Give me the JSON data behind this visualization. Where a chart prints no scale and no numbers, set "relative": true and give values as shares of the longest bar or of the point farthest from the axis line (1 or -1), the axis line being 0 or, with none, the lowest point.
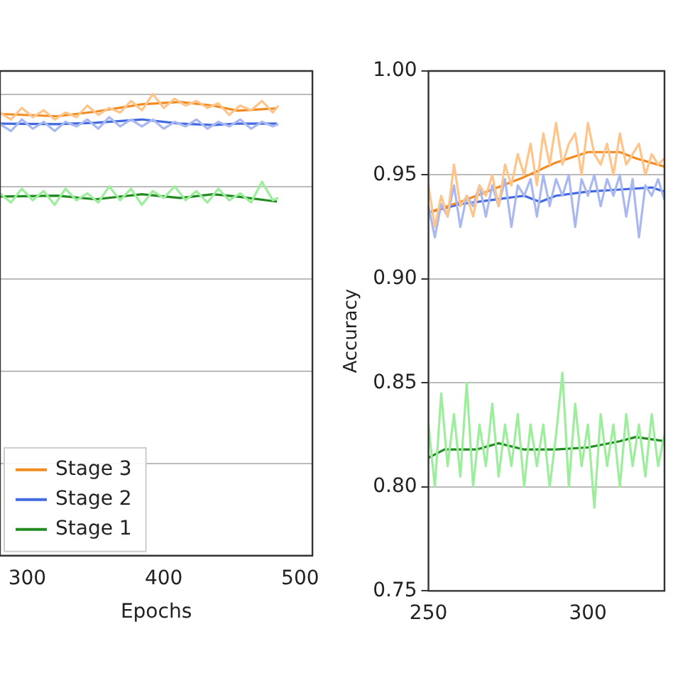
{
  "chart_data": [
    {
      "type": "line",
      "relative": true,
      "xlabel": "Epochs",
      "xlim": [
        280,
        509
      ],
      "xticks": [
        300,
        400,
        500
      ],
      "grid": "y",
      "legend": "lower left",
      "marker": "none",
      "line_style": "solid",
      "series": [
        {
          "color": "#ffc48a",
          "x": [
            280,
            288,
            296,
            304,
            312,
            320,
            328,
            336,
            344,
            352,
            360,
            368,
            376,
            384,
            392,
            400,
            408,
            416,
            424,
            432,
            440,
            448,
            456,
            464,
            472,
            480,
            484
          ],
          "values": [
            0.96,
            0.945,
            0.97,
            0.95,
            0.965,
            0.945,
            0.96,
            0.95,
            0.975,
            0.955,
            0.97,
            0.96,
            0.985,
            0.965,
            1.0,
            0.97,
            0.99,
            0.975,
            0.985,
            0.97,
            0.98,
            0.955,
            0.975,
            0.965,
            0.985,
            0.96,
            0.975
          ]
        },
        {
          "color": "#a9b8f0",
          "x": [
            280,
            288,
            296,
            304,
            312,
            320,
            328,
            336,
            344,
            352,
            360,
            368,
            376,
            384,
            392,
            400,
            408,
            416,
            424,
            432,
            440,
            448,
            456,
            464,
            472,
            480,
            484
          ],
          "values": [
            0.935,
            0.92,
            0.945,
            0.925,
            0.94,
            0.92,
            0.94,
            0.93,
            0.945,
            0.925,
            0.95,
            0.93,
            0.945,
            0.93,
            0.945,
            0.925,
            0.94,
            0.93,
            0.945,
            0.925,
            0.94,
            0.93,
            0.945,
            0.925,
            0.94,
            0.93,
            0.935
          ]
        },
        {
          "color": "#9cee9c",
          "x": [
            280,
            288,
            296,
            304,
            312,
            320,
            328,
            336,
            344,
            352,
            360,
            368,
            376,
            384,
            392,
            400,
            408,
            416,
            424,
            432,
            440,
            448,
            456,
            464,
            472,
            480,
            484
          ],
          "values": [
            0.785,
            0.765,
            0.795,
            0.77,
            0.79,
            0.76,
            0.795,
            0.77,
            0.785,
            0.765,
            0.8,
            0.77,
            0.795,
            0.76,
            0.79,
            0.775,
            0.8,
            0.77,
            0.79,
            0.765,
            0.795,
            0.77,
            0.785,
            0.765,
            0.81,
            0.77,
            0.775
          ]
        },
        {
          "name": "Stage 3",
          "color": "#f28a1e",
          "x": [
            280,
            322,
            350,
            384,
            412,
            436,
            454,
            483
          ],
          "values": [
            0.957,
            0.952,
            0.962,
            0.978,
            0.983,
            0.975,
            0.964,
            0.969
          ]
        },
        {
          "name": "Stage 2",
          "color": "#4169e1",
          "x": [
            280,
            322,
            350,
            384,
            412,
            436,
            454,
            483
          ],
          "values": [
            0.936,
            0.935,
            0.938,
            0.945,
            0.936,
            0.933,
            0.936,
            0.936
          ]
        },
        {
          "name": "Stage 1",
          "color": "#228b22",
          "x": [
            280,
            322,
            350,
            384,
            412,
            436,
            454,
            483
          ],
          "values": [
            0.778,
            0.78,
            0.772,
            0.783,
            0.775,
            0.783,
            0.778,
            0.767
          ]
        }
      ]
    },
    {
      "type": "line",
      "ylabel": "Accuracy",
      "xlim": [
        250,
        324
      ],
      "xticks": [
        250,
        300
      ],
      "ylim": [
        0.75,
        1.0
      ],
      "yticks": [
        {
          "value": 0.75,
          "label": "0.75"
        },
        {
          "value": 0.8,
          "label": "0.80"
        },
        {
          "value": 0.85,
          "label": "0.85"
        },
        {
          "value": 0.9,
          "label": "0.90"
        },
        {
          "value": 0.95,
          "label": "0.95"
        },
        {
          "value": 1.0,
          "label": "1.00"
        }
      ],
      "grid": "y",
      "marker": "none",
      "line_style": "solid",
      "series": [
        {
          "color": "#ffc48a",
          "x": [
            250,
            252,
            254,
            256,
            258,
            260,
            262,
            264,
            266,
            268,
            270,
            272,
            274,
            276,
            278,
            280,
            282,
            284,
            286,
            288,
            290,
            292,
            294,
            296,
            298,
            300,
            302,
            304,
            306,
            308,
            310,
            312,
            314,
            316,
            318,
            320,
            322,
            324
          ],
          "values": [
            0.945,
            0.925,
            0.94,
            0.93,
            0.955,
            0.935,
            0.94,
            0.93,
            0.945,
            0.94,
            0.95,
            0.935,
            0.955,
            0.945,
            0.96,
            0.95,
            0.965,
            0.945,
            0.97,
            0.955,
            0.975,
            0.955,
            0.965,
            0.97,
            0.95,
            0.975,
            0.96,
            0.955,
            0.965,
            0.95,
            0.97,
            0.955,
            0.96,
            0.965,
            0.95,
            0.96,
            0.955,
            0.958
          ]
        },
        {
          "color": "#a9b8f0",
          "x": [
            250,
            252,
            254,
            256,
            258,
            260,
            262,
            264,
            266,
            268,
            270,
            272,
            274,
            276,
            278,
            280,
            282,
            284,
            286,
            288,
            290,
            292,
            294,
            296,
            298,
            300,
            302,
            304,
            306,
            308,
            310,
            312,
            314,
            316,
            318,
            320,
            322,
            324
          ],
          "values": [
            0.935,
            0.92,
            0.936,
            0.93,
            0.945,
            0.925,
            0.94,
            0.935,
            0.945,
            0.93,
            0.945,
            0.935,
            0.948,
            0.925,
            0.945,
            0.94,
            0.948,
            0.93,
            0.95,
            0.935,
            0.948,
            0.94,
            0.95,
            0.925,
            0.948,
            0.94,
            0.95,
            0.935,
            0.948,
            0.94,
            0.95,
            0.93,
            0.948,
            0.92,
            0.945,
            0.94,
            0.948,
            0.938
          ]
        },
        {
          "color": "#9cee9c",
          "x": [
            250,
            252,
            254,
            256,
            258,
            260,
            262,
            264,
            266,
            268,
            270,
            272,
            274,
            276,
            278,
            280,
            282,
            284,
            286,
            288,
            290,
            292,
            294,
            296,
            298,
            300,
            302,
            304,
            306,
            308,
            310,
            312,
            314,
            316,
            318,
            320,
            322,
            324
          ],
          "values": [
            0.83,
            0.8,
            0.845,
            0.81,
            0.835,
            0.805,
            0.85,
            0.8,
            0.83,
            0.81,
            0.84,
            0.805,
            0.83,
            0.81,
            0.835,
            0.8,
            0.83,
            0.81,
            0.83,
            0.8,
            0.825,
            0.855,
            0.8,
            0.84,
            0.81,
            0.83,
            0.79,
            0.835,
            0.81,
            0.83,
            0.8,
            0.835,
            0.81,
            0.83,
            0.805,
            0.835,
            0.81,
            0.825
          ]
        },
        {
          "color": "#f28a1e",
          "x": [
            250,
            260,
            270,
            280,
            290,
            300,
            310,
            315,
            324
          ],
          "values": [
            0.932,
            0.937,
            0.943,
            0.949,
            0.956,
            0.961,
            0.961,
            0.958,
            0.954
          ]
        },
        {
          "color": "#4169e1",
          "x": [
            250,
            260,
            270,
            280,
            285,
            290,
            300,
            310,
            320,
            324
          ],
          "values": [
            0.932,
            0.936,
            0.938,
            0.94,
            0.937,
            0.94,
            0.942,
            0.943,
            0.944,
            0.942
          ]
        },
        {
          "color": "#228b22",
          "x": [
            250,
            255,
            265,
            272,
            280,
            290,
            300,
            310,
            315,
            324
          ],
          "values": [
            0.814,
            0.818,
            0.818,
            0.821,
            0.818,
            0.818,
            0.819,
            0.822,
            0.824,
            0.822
          ]
        }
      ]
    }
  ]
}
